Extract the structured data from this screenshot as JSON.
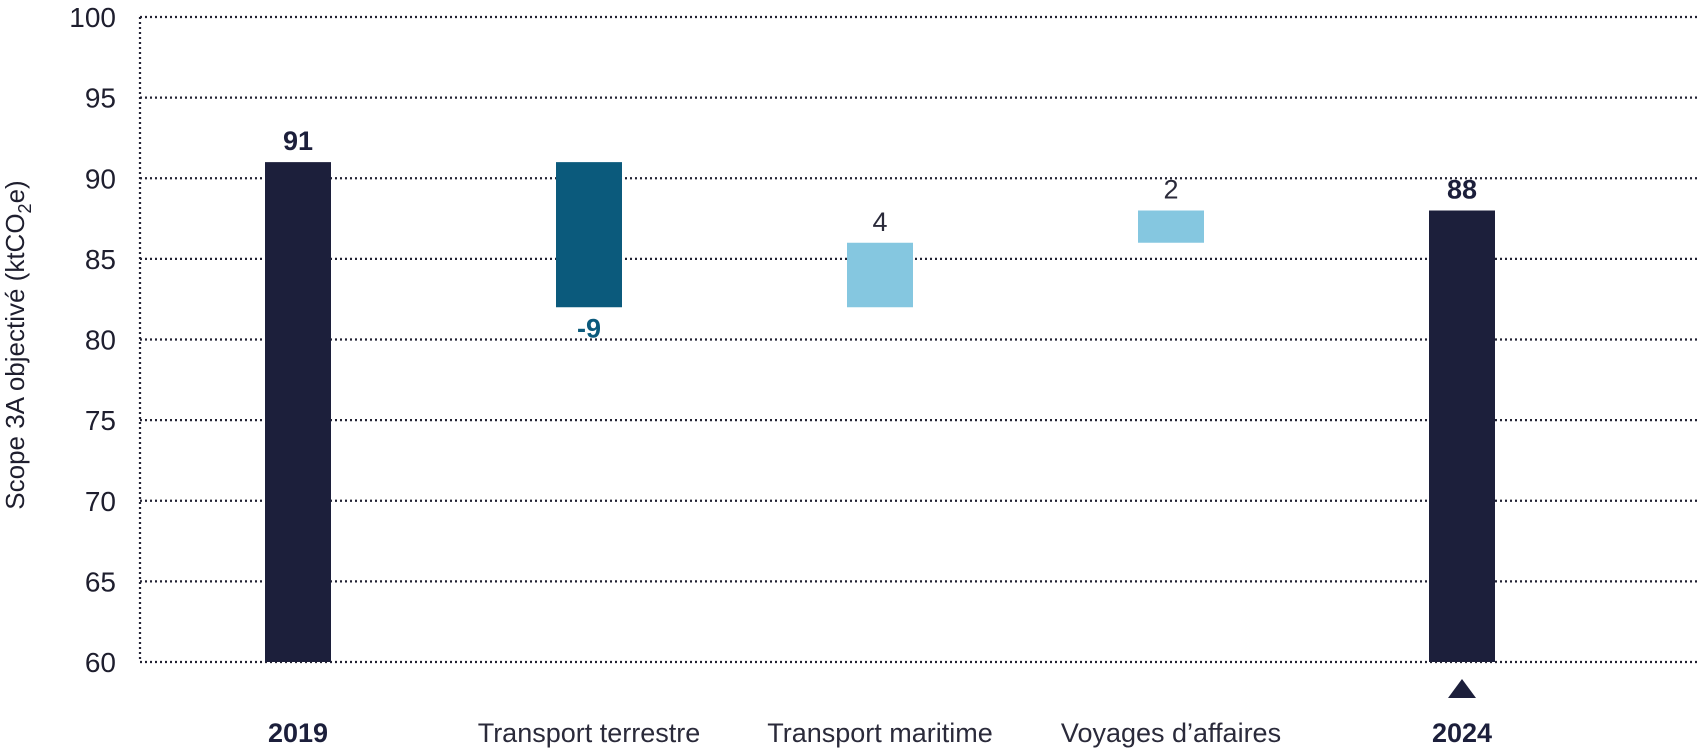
{
  "chart_data": {
    "type": "bar",
    "subtype": "waterfall",
    "ylabel": "Scope 3A objectivé  (ktCO2e)",
    "ylim": [
      60,
      100
    ],
    "yticks": [
      60,
      65,
      70,
      75,
      80,
      85,
      90,
      95,
      100
    ],
    "grid": true,
    "categories": [
      "2019",
      "Transport terrestre",
      "Transport maritime",
      "Voyages d’affaires",
      "2024"
    ],
    "bars": [
      {
        "category": "2019",
        "kind": "total",
        "start": 60,
        "end": 91,
        "label": "91",
        "color": "#1c1f3b"
      },
      {
        "category": "Transport terrestre",
        "kind": "change",
        "start": 91,
        "end": 82,
        "label": "-9",
        "color": "#0b5a7c"
      },
      {
        "category": "Transport maritime",
        "kind": "change",
        "start": 82,
        "end": 86,
        "label": "4",
        "color": "#85c7e0"
      },
      {
        "category": "Voyages d’affaires",
        "kind": "change",
        "start": 86,
        "end": 88,
        "label": "2",
        "color": "#85c7e0"
      },
      {
        "category": "2024",
        "kind": "total",
        "start": 60,
        "end": 88,
        "label": "88",
        "color": "#1c1f3b"
      }
    ],
    "marker": {
      "category": "2024",
      "shape": "triangle-up",
      "color": "#1c1f3b"
    }
  }
}
